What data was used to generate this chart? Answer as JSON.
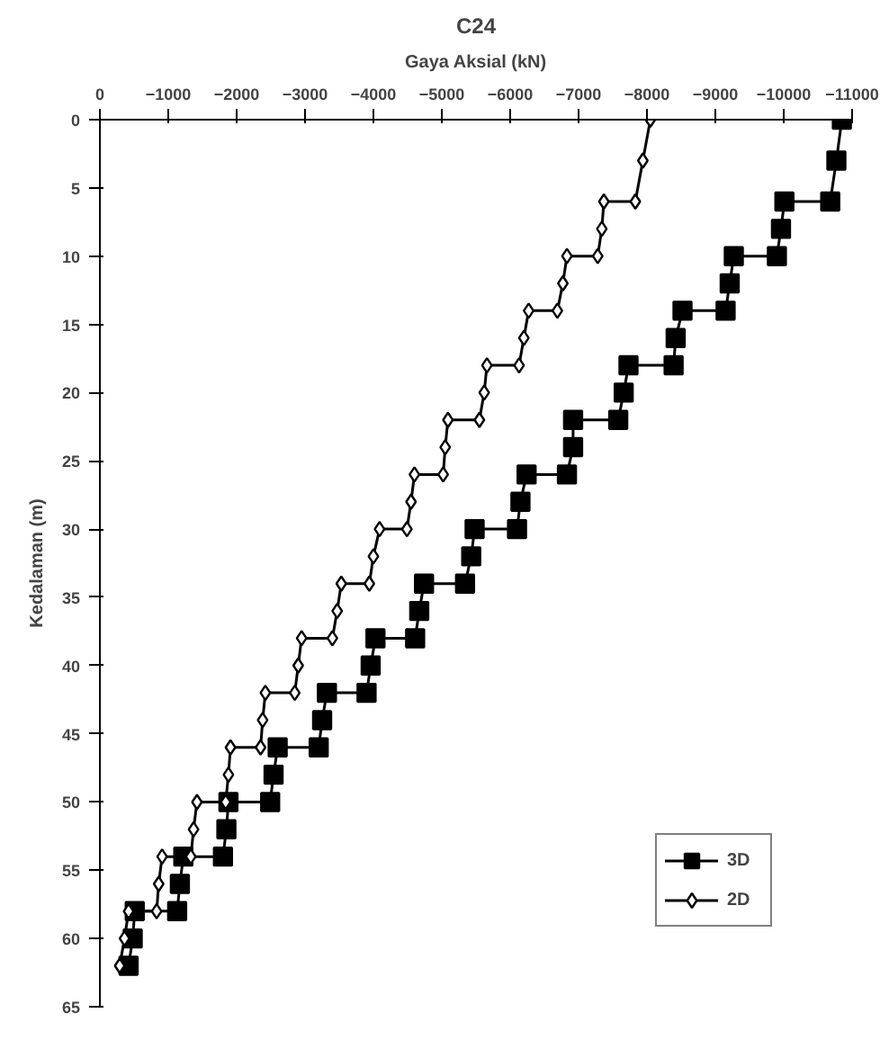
{
  "chart_data": {
    "type": "line",
    "title": "C24",
    "xlabel": "Gaya Aksial (kN)",
    "ylabel": "Kedalaman (m)",
    "xlim": [
      0,
      -11000
    ],
    "xticks": [
      0,
      -1000,
      -2000,
      -3000,
      -4000,
      -5000,
      -6000,
      -7000,
      -8000,
      -9000,
      -10000,
      -11000
    ],
    "ylim": [
      65,
      0
    ],
    "yticks": [
      0,
      5,
      10,
      15,
      20,
      25,
      30,
      35,
      40,
      45,
      50,
      55,
      60,
      65
    ],
    "grid": false,
    "legend": "bottom right",
    "line_style": "solid",
    "series": [
      {
        "name": "3D",
        "color": "#000000",
        "marker": "square",
        "x": [
          -10850,
          -10770,
          -10680,
          -10010,
          -9960,
          -9900,
          -9270,
          -9210,
          -9150,
          -8520,
          -8420,
          -8390,
          -7730,
          -7660,
          -7580,
          -6920,
          -6920,
          -6830,
          -6240,
          -6150,
          -6100,
          -5480,
          -5430,
          -5340,
          -4740,
          -4670,
          -4610,
          -4030,
          -3960,
          -3900,
          -3320,
          -3250,
          -3200,
          -2600,
          -2540,
          -2490,
          -1880,
          -1850,
          -1800,
          -1220,
          -1170,
          -1130,
          -510,
          -480,
          -420
        ],
        "values": [
          0,
          3,
          6,
          6,
          8,
          10,
          10,
          12,
          14,
          14,
          16,
          18,
          18,
          20,
          22,
          22,
          24,
          26,
          26,
          28,
          30,
          30,
          32,
          34,
          34,
          36,
          38,
          38,
          40,
          42,
          42,
          44,
          46,
          46,
          48,
          50,
          50,
          52,
          54,
          54,
          56,
          58,
          58,
          60,
          62
        ]
      },
      {
        "name": "2D",
        "color": "#000000",
        "marker": "diamond",
        "x": [
          -8050,
          -7940,
          -7830,
          -7370,
          -7340,
          -7280,
          -6830,
          -6770,
          -6690,
          -6270,
          -6200,
          -6130,
          -5660,
          -5620,
          -5550,
          -5090,
          -5050,
          -5020,
          -4600,
          -4550,
          -4490,
          -4090,
          -4000,
          -3940,
          -3530,
          -3470,
          -3400,
          -2950,
          -2900,
          -2850,
          -2420,
          -2380,
          -2350,
          -1910,
          -1880,
          -1840,
          -1420,
          -1370,
          -1330,
          -910,
          -860,
          -830,
          -420,
          -360,
          -290
        ],
        "values": [
          0,
          3,
          6,
          6,
          8,
          10,
          10,
          12,
          14,
          14,
          16,
          18,
          18,
          20,
          22,
          22,
          24,
          26,
          26,
          28,
          30,
          30,
          32,
          34,
          34,
          36,
          38,
          38,
          40,
          42,
          42,
          44,
          46,
          46,
          48,
          50,
          50,
          52,
          54,
          54,
          56,
          58,
          58,
          60,
          62
        ]
      }
    ]
  }
}
